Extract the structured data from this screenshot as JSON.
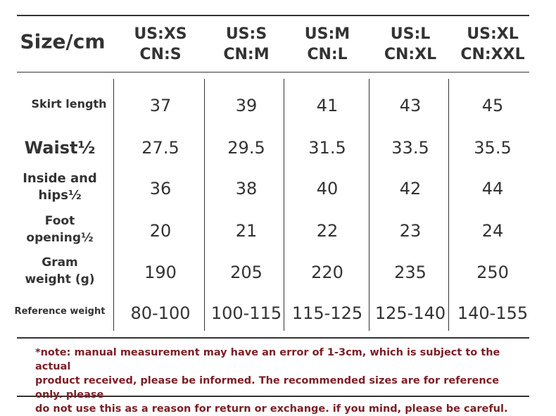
{
  "table": {
    "corner_label": "Size/cm",
    "sizes": [
      {
        "us": "US:XS",
        "cn": "CN:S"
      },
      {
        "us": "US:S",
        "cn": "CN:M"
      },
      {
        "us": "US:M",
        "cn": "CN:L"
      },
      {
        "us": "US:L",
        "cn": "CN:XL"
      },
      {
        "us": "US:XL",
        "cn": "CN:XXL"
      }
    ],
    "rows": [
      {
        "label": [
          "Skirt length"
        ],
        "values": [
          "37",
          "39",
          "41",
          "43",
          "45"
        ]
      },
      {
        "label": [
          "Waist½"
        ],
        "values": [
          "27.5",
          "29.5",
          "31.5",
          "33.5",
          "35.5"
        ]
      },
      {
        "label": [
          "Inside and",
          "hips½"
        ],
        "values": [
          "36",
          "38",
          "40",
          "42",
          "44"
        ]
      },
      {
        "label": [
          "Foot",
          "opening½"
        ],
        "values": [
          "20",
          "21",
          "22",
          "23",
          "24"
        ]
      },
      {
        "label": [
          "Gram",
          "weight (g)"
        ],
        "values": [
          "190",
          "205",
          "220",
          "235",
          "250"
        ]
      },
      {
        "label": [
          "Reference weight"
        ],
        "values": [
          "80-100",
          "100-115",
          "115-125",
          "125-140",
          "140-155"
        ]
      }
    ]
  },
  "note": {
    "lines": [
      "*note: manual measurement may have an error of 1-3cm, which is subject to the actual",
      "product received, please be informed.   The recommended sizes are for reference only. please",
      "do not use this as a reason for return or exchange. if you mind, please be careful."
    ],
    "color": "#7a1f25"
  }
}
